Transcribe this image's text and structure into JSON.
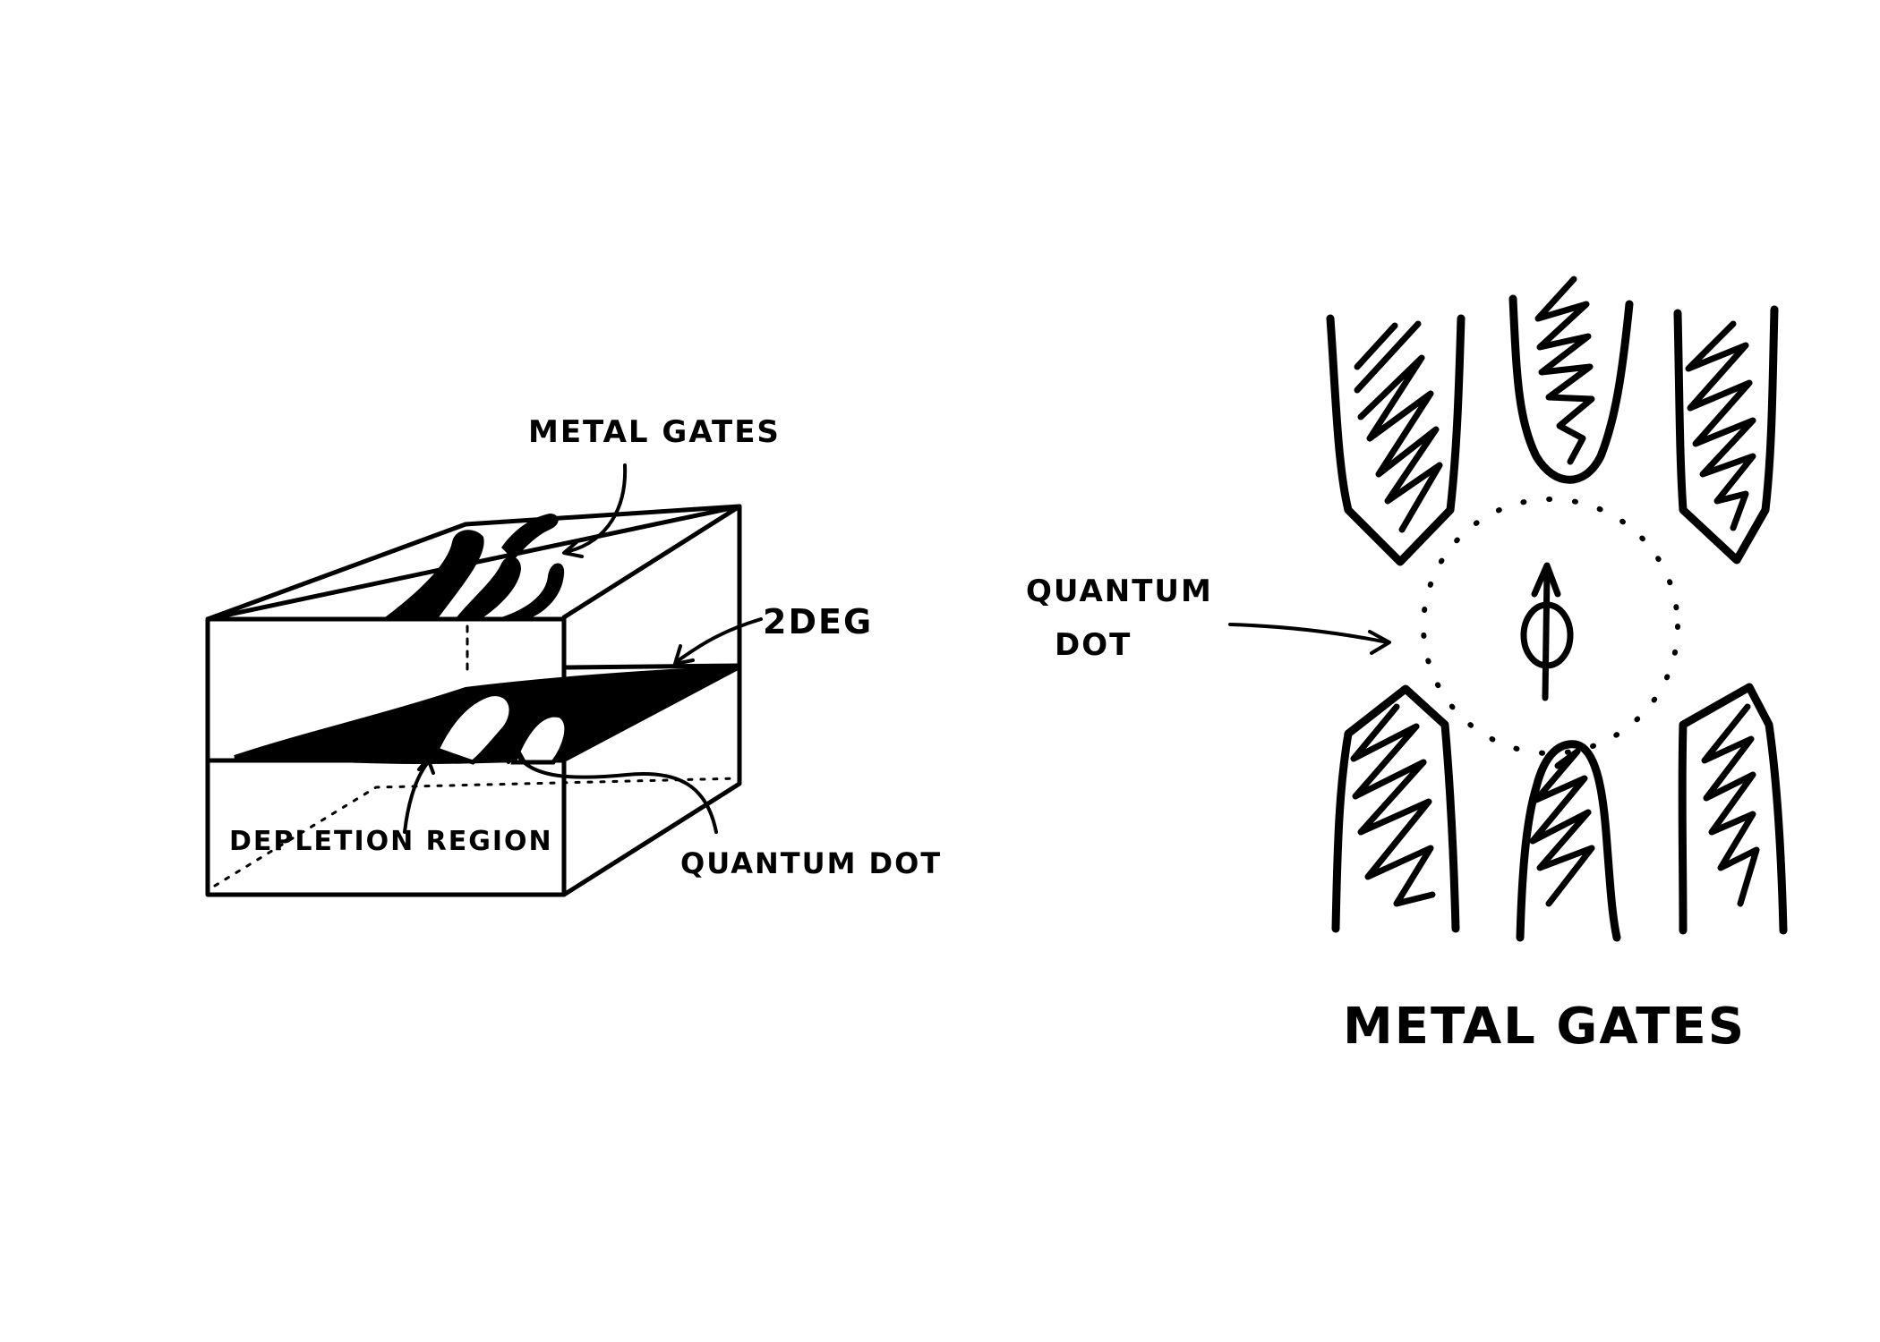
{
  "left_diagram": {
    "metal_gates_label": "METAL GATES",
    "twodeg_label": "2DEG",
    "depletion_label": "DEPLETION REGION",
    "quantum_dot_label": "QUANTUM DOT"
  },
  "right_diagram": {
    "quantum_dot_label_line1": "QUANTUM",
    "quantum_dot_label_line2": "DOT",
    "metal_gates_label": "METAL GATES",
    "spin_symbol": "spin-up-arrow"
  },
  "colors": {
    "ink": "#000000",
    "background": "#ffffff"
  }
}
